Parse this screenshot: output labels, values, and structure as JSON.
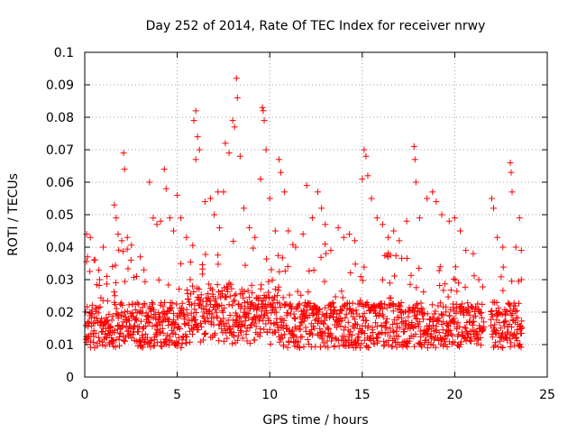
{
  "chart_data": {
    "type": "scatter",
    "title": "Day 252 of 2014, Rate Of TEC Index for receiver nrwy",
    "xlabel": "GPS time / hours",
    "ylabel": "ROTI / TECUs",
    "xlim": [
      0,
      25
    ],
    "ylim": [
      0,
      0.1
    ],
    "xticks": [
      "0",
      "5",
      "10",
      "15",
      "20",
      "25"
    ],
    "yticks": [
      "0",
      "0.01",
      "0.02",
      "0.03",
      "0.04",
      "0.05",
      "0.06",
      "0.07",
      "0.08",
      "0.09",
      "0.1"
    ],
    "grid": true,
    "marker": "+",
    "series_color": "#ff0000",
    "series": [
      {
        "values_description_free": true,
        "points": [
          [
            0.1,
            0.044
          ],
          [
            0.15,
            0.037
          ],
          [
            0.3,
            0.043
          ],
          [
            0.5,
            0.036
          ],
          [
            0.8,
            0.03
          ],
          [
            1.0,
            0.04
          ],
          [
            1.2,
            0.031
          ],
          [
            1.5,
            0.034
          ],
          [
            1.6,
            0.053
          ],
          [
            1.7,
            0.049
          ],
          [
            1.8,
            0.044
          ],
          [
            2.0,
            0.042
          ],
          [
            2.1,
            0.069
          ],
          [
            2.15,
            0.064
          ],
          [
            2.3,
            0.043
          ],
          [
            2.5,
            0.036
          ],
          [
            2.8,
            0.031
          ],
          [
            3.0,
            0.037
          ],
          [
            3.2,
            0.033
          ],
          [
            3.5,
            0.06
          ],
          [
            3.7,
            0.049
          ],
          [
            3.9,
            0.047
          ],
          [
            4.1,
            0.048
          ],
          [
            4.3,
            0.064
          ],
          [
            4.4,
            0.058
          ],
          [
            4.6,
            0.049
          ],
          [
            4.8,
            0.045
          ],
          [
            5.0,
            0.056
          ],
          [
            5.2,
            0.049
          ],
          [
            5.5,
            0.043
          ],
          [
            5.9,
            0.079
          ],
          [
            6.0,
            0.082
          ],
          [
            6.1,
            0.074
          ],
          [
            6.2,
            0.07
          ],
          [
            6.0,
            0.067
          ],
          [
            6.5,
            0.054
          ],
          [
            6.8,
            0.055
          ],
          [
            7.0,
            0.05
          ],
          [
            7.2,
            0.057
          ],
          [
            7.5,
            0.057
          ],
          [
            7.6,
            0.072
          ],
          [
            7.8,
            0.069
          ],
          [
            8.0,
            0.079
          ],
          [
            8.1,
            0.077
          ],
          [
            8.2,
            0.092
          ],
          [
            8.25,
            0.086
          ],
          [
            8.4,
            0.068
          ],
          [
            8.6,
            0.052
          ],
          [
            8.9,
            0.046
          ],
          [
            9.2,
            0.043
          ],
          [
            9.5,
            0.061
          ],
          [
            9.6,
            0.083
          ],
          [
            9.65,
            0.082
          ],
          [
            9.7,
            0.079
          ],
          [
            9.8,
            0.07
          ],
          [
            10.0,
            0.055
          ],
          [
            10.3,
            0.045
          ],
          [
            10.5,
            0.067
          ],
          [
            10.6,
            0.063
          ],
          [
            10.8,
            0.057
          ],
          [
            11.0,
            0.045
          ],
          [
            11.4,
            0.04
          ],
          [
            11.8,
            0.044
          ],
          [
            12.0,
            0.059
          ],
          [
            12.3,
            0.049
          ],
          [
            12.6,
            0.057
          ],
          [
            12.8,
            0.052
          ],
          [
            13.0,
            0.047
          ],
          [
            13.3,
            0.039
          ],
          [
            13.7,
            0.046
          ],
          [
            14.0,
            0.043
          ],
          [
            14.3,
            0.044
          ],
          [
            14.6,
            0.042
          ],
          [
            15.0,
            0.061
          ],
          [
            15.1,
            0.07
          ],
          [
            15.2,
            0.068
          ],
          [
            15.3,
            0.062
          ],
          [
            15.5,
            0.055
          ],
          [
            15.8,
            0.049
          ],
          [
            16.1,
            0.047
          ],
          [
            16.4,
            0.043
          ],
          [
            16.7,
            0.045
          ],
          [
            17.0,
            0.042
          ],
          [
            17.4,
            0.048
          ],
          [
            17.8,
            0.071
          ],
          [
            17.85,
            0.067
          ],
          [
            17.9,
            0.06
          ],
          [
            18.1,
            0.049
          ],
          [
            18.5,
            0.055
          ],
          [
            18.8,
            0.057
          ],
          [
            19.0,
            0.054
          ],
          [
            19.3,
            0.05
          ],
          [
            19.7,
            0.048
          ],
          [
            20.0,
            0.049
          ],
          [
            20.3,
            0.045
          ],
          [
            20.6,
            0.039
          ],
          [
            21.0,
            0.038
          ],
          [
            21.3,
            0.03
          ],
          [
            22.0,
            0.055
          ],
          [
            22.1,
            0.052
          ],
          [
            22.3,
            0.043
          ],
          [
            22.6,
            0.04
          ],
          [
            23.0,
            0.066
          ],
          [
            23.05,
            0.063
          ],
          [
            23.1,
            0.057
          ],
          [
            23.3,
            0.04
          ],
          [
            23.5,
            0.049
          ],
          [
            23.6,
            0.039
          ],
          [
            23.6,
            0.03
          ]
        ]
      }
    ]
  }
}
